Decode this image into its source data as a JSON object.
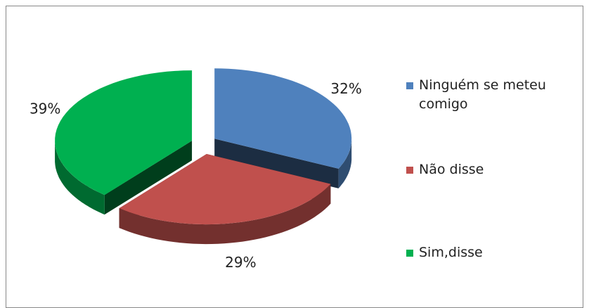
{
  "chart_data": {
    "type": "pie3d",
    "categories": [
      "Ninguém se meteu comigo",
      "Não disse",
      "Sim,disse"
    ],
    "values": [
      32,
      29,
      39
    ],
    "value_labels": [
      "32%",
      "29%",
      "39%"
    ],
    "colors": [
      "#4f81bd",
      "#c0504d",
      "#00b050"
    ],
    "legend": "right"
  }
}
